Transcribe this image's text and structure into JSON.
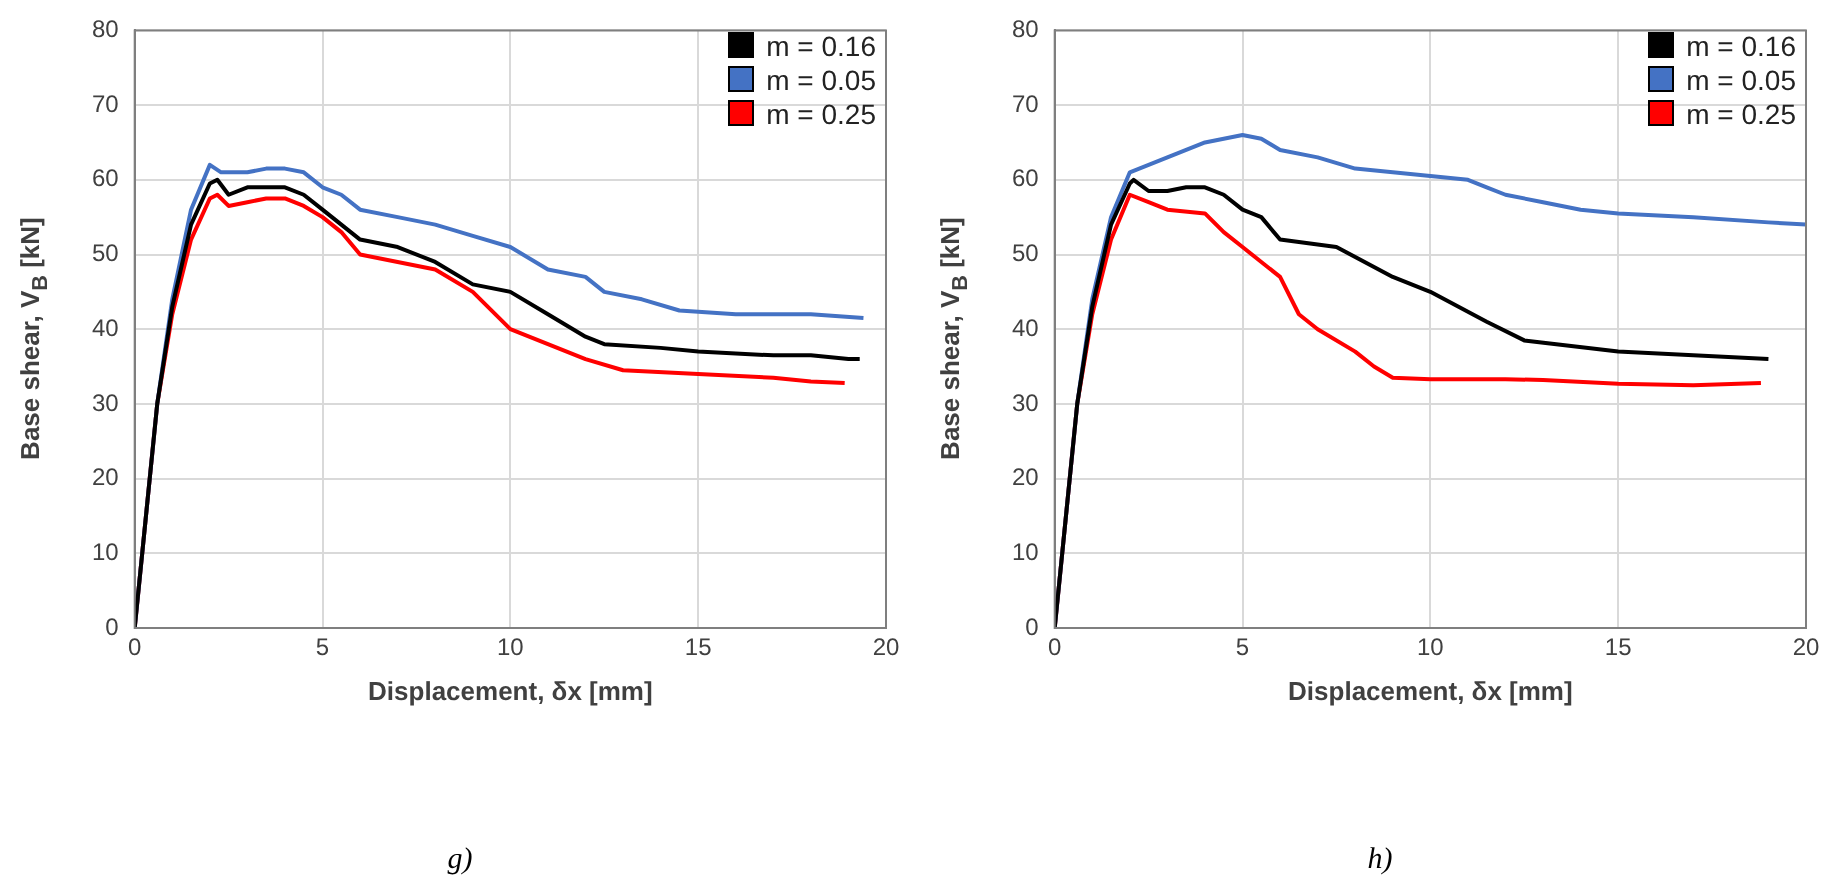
{
  "chart_data": [
    {
      "type": "line",
      "xlabel": "Displacement, δx [mm]",
      "ylabel": "Base shear, V$_{B}$ [kN]",
      "xlim": [
        0,
        20
      ],
      "xticks": [
        0,
        5,
        10,
        15,
        20
      ],
      "ylim": [
        0,
        80
      ],
      "yticks": [
        0,
        10,
        20,
        30,
        40,
        50,
        60,
        70,
        80
      ],
      "grid": true,
      "legend": "top right",
      "marker": "none",
      "line_style": "solid",
      "annotations": [
        "g)"
      ],
      "series": [
        {
          "name": "m = 0.16",
          "color": "#000000",
          "x": [
            0,
            0.3,
            0.6,
            1,
            1.5,
            2,
            2.2,
            2.5,
            3,
            3.5,
            4,
            4.5,
            5,
            5.5,
            6,
            7,
            8,
            9,
            10,
            11,
            12,
            12.5,
            14,
            15,
            17,
            18,
            19,
            19.3
          ],
          "values": [
            0,
            15,
            30,
            43,
            54,
            59.5,
            60,
            58,
            59,
            59,
            59,
            58,
            56,
            54,
            52,
            51,
            49,
            46,
            45,
            42,
            39,
            38,
            37.5,
            37,
            36.5,
            36.5,
            36,
            36
          ]
        },
        {
          "name": "m = 0.05",
          "color": "#4472c4",
          "x": [
            0,
            0.3,
            0.6,
            1,
            1.5,
            2,
            2.3,
            2.5,
            3,
            3.5,
            4,
            4.5,
            5,
            5.5,
            6,
            7,
            8,
            9,
            10,
            11,
            12,
            12.5,
            13.5,
            14.5,
            16,
            18,
            19.4
          ],
          "values": [
            0,
            15,
            30,
            44,
            56,
            62,
            61,
            61,
            61,
            61.5,
            61.5,
            61,
            59,
            58,
            56,
            55,
            54,
            52.5,
            51,
            48,
            47,
            45,
            44,
            42.5,
            42,
            42,
            41.5
          ]
        },
        {
          "name": "m = 0.25",
          "color": "#ff0000",
          "x": [
            0,
            0.3,
            0.6,
            1,
            1.5,
            2,
            2.2,
            2.5,
            3,
            3.5,
            4,
            4.5,
            5,
            5.5,
            6,
            7,
            8,
            9,
            10,
            11,
            12,
            13,
            15,
            17,
            18,
            18.9
          ],
          "values": [
            0,
            15,
            30,
            42,
            52,
            57.5,
            58,
            56.5,
            57,
            57.5,
            57.5,
            56.5,
            55,
            53,
            50,
            49,
            48,
            45,
            40,
            38,
            36,
            34.5,
            34,
            33.5,
            33,
            32.8
          ]
        }
      ]
    },
    {
      "type": "line",
      "xlabel": "Displacement, δx [mm]",
      "ylabel": "Base shear, V$_{B}$ [kN]",
      "xlim": [
        0,
        20
      ],
      "xticks": [
        0,
        5,
        10,
        15,
        20
      ],
      "ylim": [
        0,
        80
      ],
      "yticks": [
        0,
        10,
        20,
        30,
        40,
        50,
        60,
        70,
        80
      ],
      "grid": true,
      "legend": "top right",
      "marker": "none",
      "line_style": "solid",
      "annotations": [
        "h)"
      ],
      "series": [
        {
          "name": "m = 0.16",
          "color": "#000000",
          "x": [
            0,
            0.3,
            0.6,
            1,
            1.5,
            2,
            2.1,
            2.5,
            3,
            3.5,
            4,
            4.5,
            5,
            5.5,
            6,
            7.5,
            9,
            10,
            11.5,
            12.5,
            15,
            17,
            19
          ],
          "values": [
            0,
            15,
            30,
            43,
            54,
            59.5,
            60,
            58.5,
            58.5,
            59,
            59,
            58,
            56,
            55,
            52,
            51,
            47,
            45,
            41,
            38.5,
            37,
            36.5,
            36
          ]
        },
        {
          "name": "m = 0.05",
          "color": "#4472c4",
          "x": [
            0,
            0.3,
            0.6,
            1,
            1.5,
            2,
            2.5,
            3,
            4,
            5,
            5.5,
            6,
            7,
            8,
            9,
            10,
            11,
            11.5,
            12,
            13,
            14,
            15,
            17,
            19,
            20
          ],
          "values": [
            0,
            15,
            30,
            44,
            55,
            61,
            62,
            63,
            65,
            66,
            65.5,
            64,
            63,
            61.5,
            61,
            60.5,
            60,
            59,
            58,
            57,
            56,
            55.5,
            55,
            54.3,
            54
          ]
        },
        {
          "name": "m = 0.25",
          "color": "#ff0000",
          "x": [
            0,
            0.3,
            0.6,
            1,
            1.5,
            2,
            2.5,
            3,
            4,
            4.5,
            5,
            5.5,
            6,
            6.5,
            7,
            8,
            8.5,
            9,
            10,
            12,
            13,
            15,
            17,
            18.8
          ],
          "values": [
            0,
            15,
            30,
            42,
            52,
            58,
            57,
            56,
            55.5,
            53,
            51,
            49,
            47,
            42,
            40,
            37,
            35,
            33.5,
            33.3,
            33.3,
            33.2,
            32.7,
            32.5,
            32.8
          ]
        }
      ]
    }
  ]
}
